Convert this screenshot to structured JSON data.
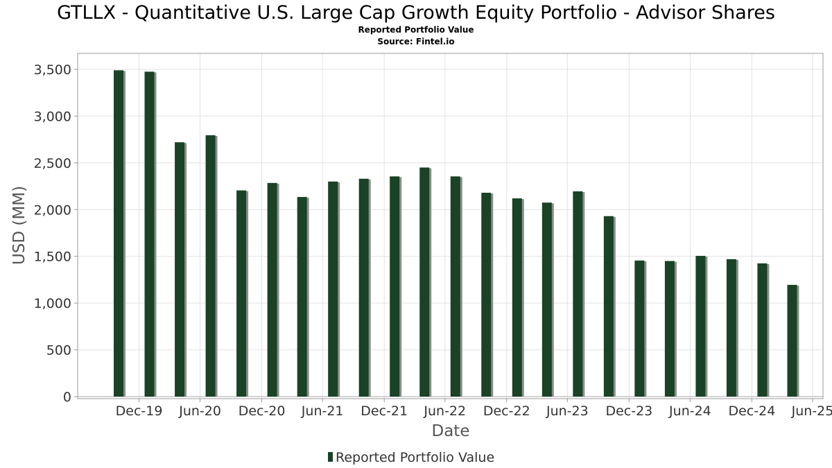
{
  "chart_data": {
    "type": "bar",
    "title": "GTLLX - Quantitative U.S. Large Cap Growth Equity Portfolio - Advisor Shares",
    "subtitle": "Reported Portfolio Value",
    "source": "Source: Fintel.io",
    "xlabel": "Date",
    "ylabel": "USD (MM)",
    "ylim": [
      0,
      3650
    ],
    "yticks": [
      0,
      500,
      1000,
      1500,
      2000,
      2500,
      3000,
      3500
    ],
    "ytick_labels": [
      "0",
      "500",
      "1,000",
      "1,500",
      "2,000",
      "2,500",
      "3,000",
      "3,500"
    ],
    "xlim": [
      "2019-07-01",
      "2025-07-31"
    ],
    "xticks": [
      {
        "label": "Dec-19",
        "date": "2019-12-31"
      },
      {
        "label": "Jun-20",
        "date": "2020-06-30"
      },
      {
        "label": "Dec-20",
        "date": "2020-12-31"
      },
      {
        "label": "Jun-21",
        "date": "2021-06-30"
      },
      {
        "label": "Dec-21",
        "date": "2021-12-31"
      },
      {
        "label": "Jun-22",
        "date": "2022-06-30"
      },
      {
        "label": "Dec-22",
        "date": "2022-12-31"
      },
      {
        "label": "Jun-23",
        "date": "2023-06-30"
      },
      {
        "label": "Dec-23",
        "date": "2023-12-31"
      },
      {
        "label": "Jun-24",
        "date": "2024-06-30"
      },
      {
        "label": "Dec-24",
        "date": "2024-12-31"
      },
      {
        "label": "Jun-25",
        "date": "2025-06-30"
      }
    ],
    "grid": true,
    "legend_position": "bottom",
    "bar_color": "#1a4226",
    "shadow_color": "#8a8f8a",
    "series": [
      {
        "name": "Reported Portfolio Value",
        "x": [
          "2019-10-31",
          "2020-01-31",
          "2020-04-30",
          "2020-07-31",
          "2020-10-31",
          "2021-01-31",
          "2021-04-30",
          "2021-07-31",
          "2021-10-31",
          "2022-01-31",
          "2022-04-30",
          "2022-07-31",
          "2022-10-31",
          "2023-01-31",
          "2023-04-30",
          "2023-07-31",
          "2023-10-31",
          "2024-01-31",
          "2024-04-30",
          "2024-07-31",
          "2024-10-31",
          "2025-01-31",
          "2025-04-30"
        ],
        "values": [
          3490,
          3475,
          2720,
          2795,
          2205,
          2285,
          2135,
          2300,
          2330,
          2355,
          2450,
          2355,
          2180,
          2120,
          2075,
          2195,
          1930,
          1455,
          1450,
          1505,
          1470,
          1425,
          1195
        ]
      }
    ]
  }
}
